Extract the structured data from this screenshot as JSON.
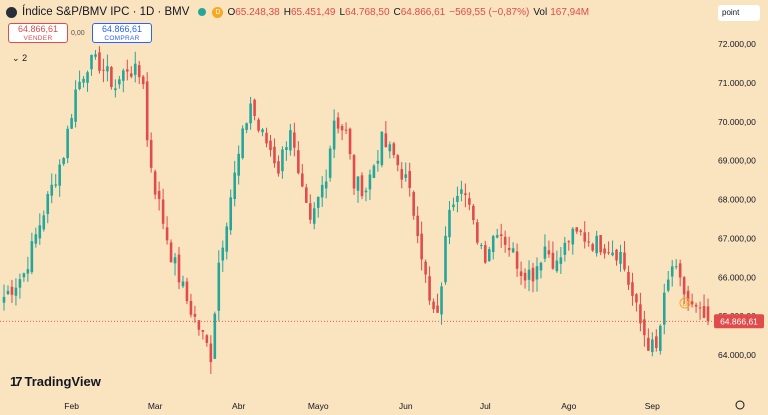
{
  "header": {
    "title": "Índice S&P/BMV IPC · 1D · BMV",
    "badge": "D",
    "o_label": "O",
    "o_value": "65.248,38",
    "h_label": "H",
    "h_value": "65.451,49",
    "l_label": "L",
    "l_value": "64.768,50",
    "c_label": "C",
    "c_value": "64.866,61",
    "change": "−569,55 (−0,87%)",
    "vol_label": "Vol",
    "vol_value": "167,94M"
  },
  "trade": {
    "sell_price": "64.866,61",
    "sell_label": "VENDER",
    "spread": "0,00",
    "buy_price": "64.866,61",
    "buy_label": "COMPRAR"
  },
  "indicators_toggle": "2",
  "point_box": "point",
  "logo_text": "TradingView",
  "colors": {
    "up": "#26a69a",
    "down": "#e04b4b",
    "background": "#fae3bf"
  },
  "chart_data": {
    "type": "candlestick",
    "y_ticks": [
      "72.000,00",
      "71.000,00",
      "70.000,00",
      "69.000,00",
      "68.000,00",
      "67.000,00",
      "66.000,00",
      "65.000,00",
      "64.000,00"
    ],
    "y_tick_values": [
      72000,
      71000,
      70000,
      69000,
      68000,
      67000,
      66000,
      65000,
      64000
    ],
    "ylim": [
      63600,
      72700
    ],
    "x_ticks": [
      "Feb",
      "Mar",
      "Abr",
      "Mayo",
      "Jun",
      "Jul",
      "Ago",
      "Sep"
    ],
    "x_tick_index": [
      17,
      38,
      59,
      79,
      101,
      121,
      142,
      163
    ],
    "last_price": 64866.61,
    "last_price_label": "64.866,61",
    "close_anchors": [
      [
        0,
        65500
      ],
      [
        5,
        66100
      ],
      [
        10,
        67700
      ],
      [
        15,
        69200
      ],
      [
        18,
        70800
      ],
      [
        21,
        71500
      ],
      [
        24,
        71500
      ],
      [
        28,
        70900
      ],
      [
        31,
        71400
      ],
      [
        35,
        71100
      ],
      [
        36,
        69500
      ],
      [
        38,
        68300
      ],
      [
        42,
        66600
      ],
      [
        46,
        65400
      ],
      [
        49,
        64700
      ],
      [
        52,
        64000
      ],
      [
        54,
        66400
      ],
      [
        57,
        68100
      ],
      [
        60,
        69600
      ],
      [
        62,
        70500
      ],
      [
        64,
        69800
      ],
      [
        67,
        69300
      ],
      [
        69,
        68800
      ],
      [
        72,
        69900
      ],
      [
        74,
        68500
      ],
      [
        77,
        67300
      ],
      [
        81,
        68700
      ],
      [
        83,
        70100
      ],
      [
        86,
        69700
      ],
      [
        88,
        68400
      ],
      [
        91,
        68300
      ],
      [
        95,
        69500
      ],
      [
        98,
        69100
      ],
      [
        101,
        68500
      ],
      [
        104,
        67300
      ],
      [
        107,
        65300
      ],
      [
        109,
        64900
      ],
      [
        112,
        67900
      ],
      [
        115,
        68500
      ],
      [
        118,
        67300
      ],
      [
        121,
        66600
      ],
      [
        124,
        67300
      ],
      [
        127,
        66800
      ],
      [
        130,
        66200
      ],
      [
        133,
        66100
      ],
      [
        136,
        66800
      ],
      [
        139,
        66300
      ],
      [
        142,
        67000
      ],
      [
        145,
        67100
      ],
      [
        148,
        66900
      ],
      [
        152,
        66800
      ],
      [
        155,
        66600
      ],
      [
        158,
        65500
      ],
      [
        160,
        64800
      ],
      [
        162,
        64300
      ],
      [
        164,
        64100
      ],
      [
        166,
        65400
      ],
      [
        168,
        66300
      ],
      [
        170,
        65800
      ],
      [
        173,
        65200
      ],
      [
        175,
        65000
      ],
      [
        177,
        64867
      ]
    ]
  }
}
